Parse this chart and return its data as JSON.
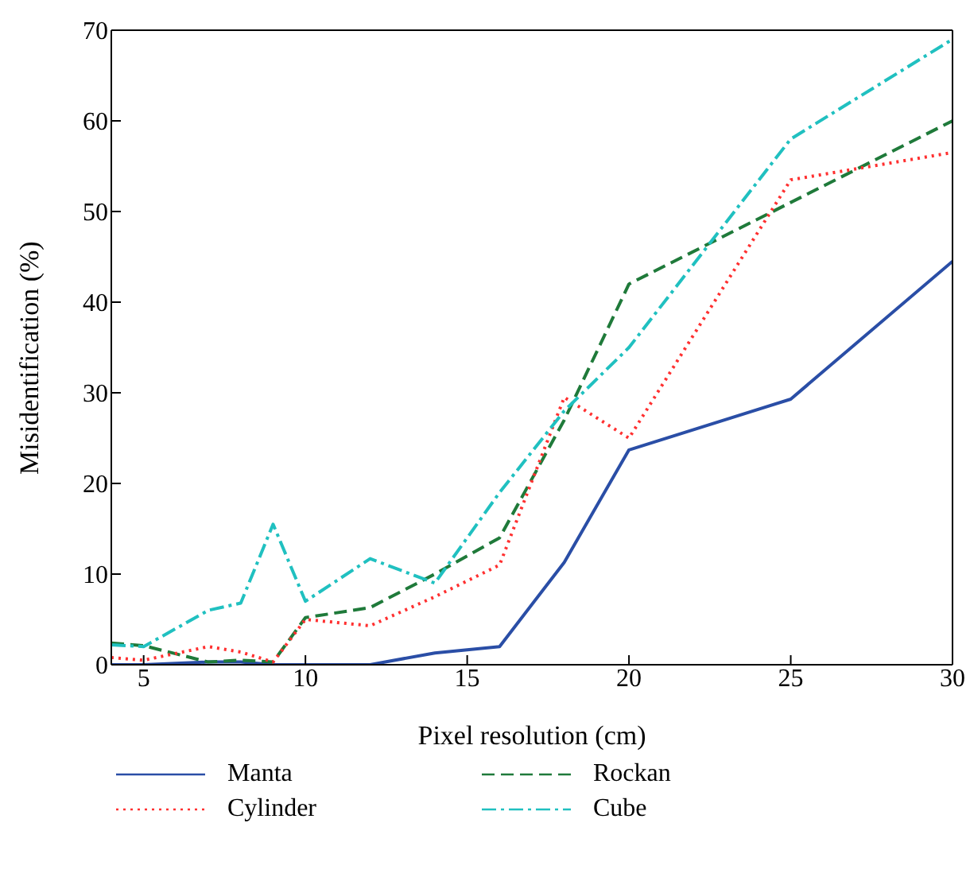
{
  "chart_data": {
    "type": "line",
    "xlabel": "Pixel resolution (cm)",
    "ylabel": "Misidentification (%)",
    "x": [
      4,
      5,
      7,
      8,
      9,
      10,
      12,
      14,
      16,
      18,
      20,
      25,
      30
    ],
    "xlim": [
      4,
      30
    ],
    "xticks": [
      5,
      10,
      15,
      20,
      25,
      30
    ],
    "ylim": [
      0,
      70
    ],
    "yticks": [
      0,
      10,
      20,
      30,
      40,
      50,
      60,
      70
    ],
    "grid": false,
    "legend": "bottom",
    "marker": "none",
    "series": [
      {
        "name": "Manta",
        "color": "#2a4ea6",
        "line_style": "solid",
        "values": [
          0,
          0,
          0.3,
          0.3,
          0,
          0,
          0,
          1.3,
          2,
          11.3,
          23.7,
          29.3,
          44.5
        ]
      },
      {
        "name": "Rockan",
        "color": "#1f7a3a",
        "line_style": "dashed",
        "values": [
          2.4,
          2.1,
          0.3,
          0.5,
          0.3,
          5.2,
          6.3,
          10,
          14,
          27,
          42,
          51,
          60
        ]
      },
      {
        "name": "Cylinder",
        "color": "#ff3030",
        "line_style": "dotted",
        "values": [
          0.8,
          0.5,
          2,
          1.4,
          0.3,
          5,
          4.3,
          7.5,
          11,
          29.5,
          25,
          53.5,
          56.5
        ]
      },
      {
        "name": "Cube",
        "color": "#20c0c0",
        "line_style": "dashdot",
        "values": [
          2.2,
          2,
          6,
          6.8,
          15.5,
          7,
          11.7,
          9,
          19,
          28,
          35,
          58,
          69
        ]
      }
    ]
  }
}
